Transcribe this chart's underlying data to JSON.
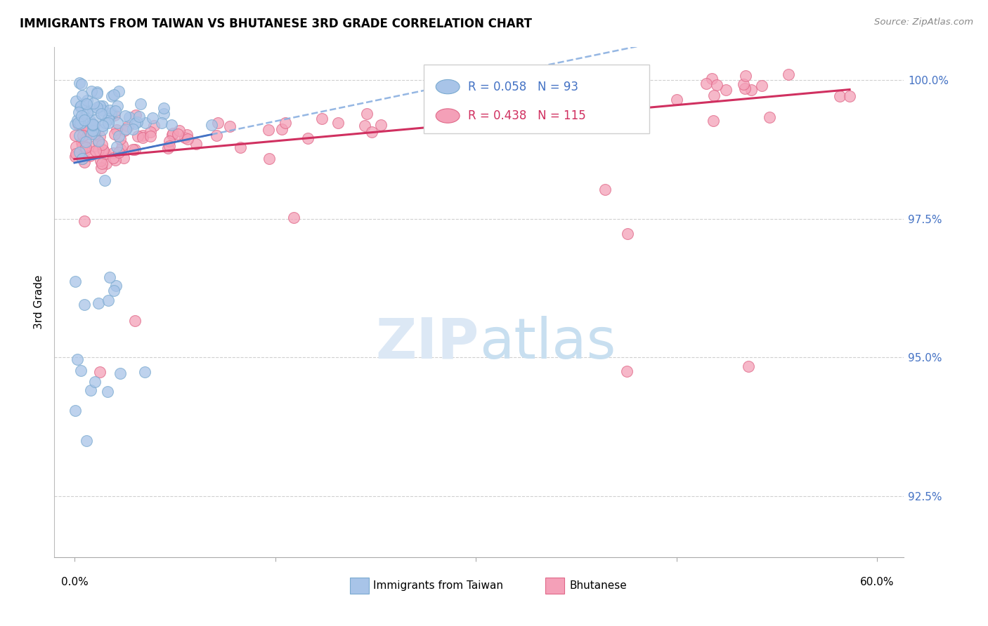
{
  "title": "IMMIGRANTS FROM TAIWAN VS BHUTANESE 3RD GRADE CORRELATION CHART",
  "source": "Source: ZipAtlas.com",
  "ylabel": "3rd Grade",
  "y_tick_labels": [
    "100.0%",
    "97.5%",
    "95.0%",
    "92.5%"
  ],
  "y_tick_values": [
    1.0,
    0.975,
    0.95,
    0.925
  ],
  "x_min": 0.0,
  "x_max": 60.0,
  "y_min": 0.914,
  "y_max": 1.006,
  "taiwan_R": 0.058,
  "taiwan_N": 93,
  "bhutanese_R": 0.438,
  "bhutanese_N": 115,
  "taiwan_scatter_color": "#a8c4e8",
  "taiwan_scatter_edge": "#7aaad0",
  "bhutanese_scatter_color": "#f4a0b8",
  "bhutanese_scatter_edge": "#e06888",
  "taiwan_line_color": "#4472c4",
  "taiwan_dash_color": "#8aafe0",
  "bhutanese_line_color": "#d03060",
  "grid_color": "#d0d0d0",
  "legend_border_color": "#d0d0d0",
  "taiwan_legend_text_color": "#4472c4",
  "bhutanese_legend_text_color": "#d03060",
  "right_tick_color": "#4472c4",
  "watermark_zip_color": "#dce8f5",
  "watermark_atlas_color": "#c8dff0"
}
